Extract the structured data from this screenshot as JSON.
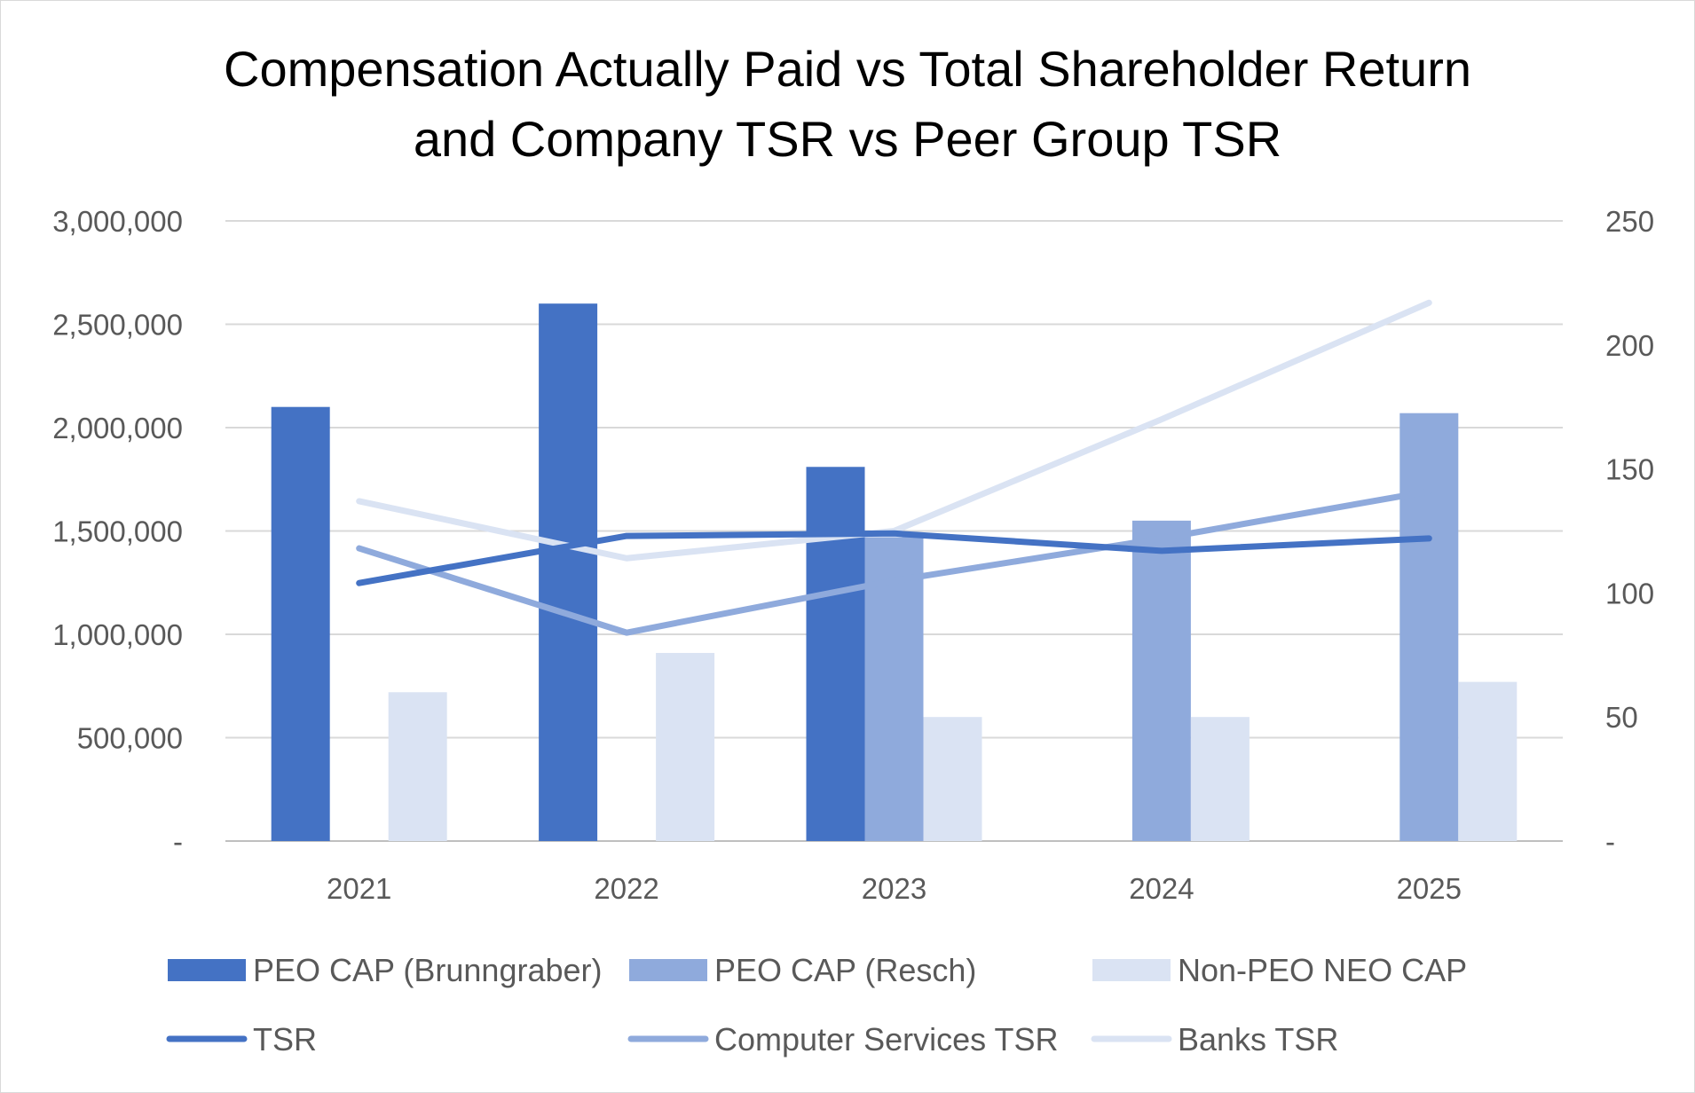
{
  "chart_data": {
    "type": "bar",
    "title_lines": [
      "Compensation Actually Paid vs Total Shareholder Return",
      "and Company TSR vs Peer Group TSR"
    ],
    "categories": [
      "2021",
      "2022",
      "2023",
      "2024",
      "2025"
    ],
    "y_left": {
      "range": [
        0,
        3000000
      ],
      "ticks": [
        0,
        500000,
        1000000,
        1500000,
        2000000,
        2500000,
        3000000
      ],
      "tick_labels": [
        "-",
        "500,000",
        "1,000,000",
        "1,500,000",
        "2,000,000",
        "2,500,000",
        "3,000,000"
      ]
    },
    "y_right": {
      "range": [
        0,
        250
      ],
      "ticks": [
        0,
        50,
        100,
        150,
        200,
        250
      ],
      "tick_labels": [
        "-",
        "50",
        "100",
        "150",
        "200",
        "250"
      ]
    },
    "grid": true,
    "legend_position": "bottom",
    "bar_series": [
      {
        "name": "PEO CAP (Brunngraber)",
        "color": "#4472c4",
        "values": [
          2100000,
          2600000,
          1810000,
          null,
          null
        ]
      },
      {
        "name": "PEO CAP (Resch)",
        "color": "#8faadc",
        "values": [
          null,
          null,
          1470000,
          1550000,
          2070000
        ]
      },
      {
        "name": "Non-PEO NEO CAP",
        "color": "#dae3f3",
        "values": [
          720000,
          910000,
          600000,
          600000,
          770000
        ]
      }
    ],
    "line_series": [
      {
        "name": "TSR",
        "color": "#4472c4",
        "axis": "right",
        "values": [
          104,
          123,
          124,
          117,
          122
        ]
      },
      {
        "name": "Computer Services TSR",
        "color": "#8faadc",
        "axis": "right",
        "values": [
          118,
          84,
          105,
          122,
          141
        ]
      },
      {
        "name": "Banks TSR",
        "color": "#dae3f3",
        "axis": "right",
        "values": [
          137,
          114,
          125,
          170,
          217
        ]
      }
    ]
  }
}
